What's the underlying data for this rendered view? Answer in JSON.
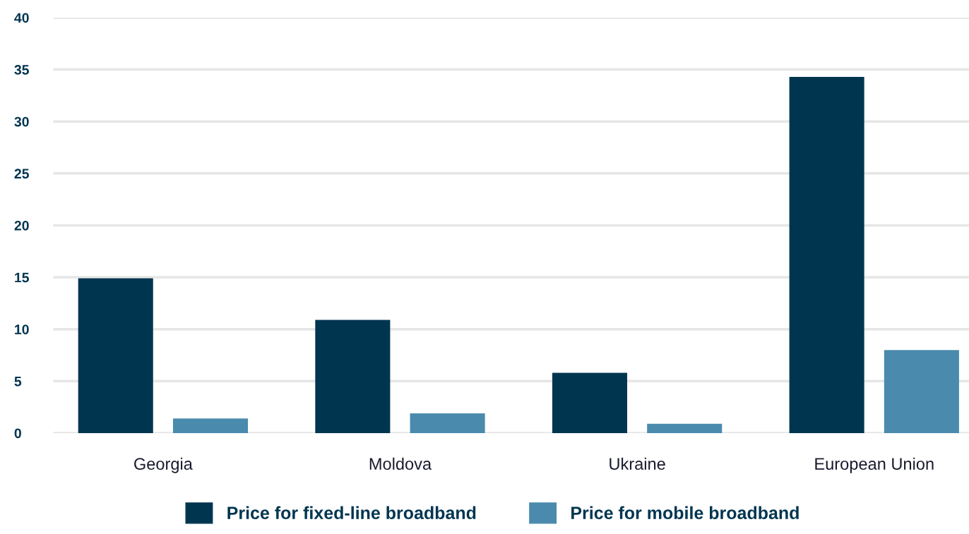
{
  "chart_data": {
    "type": "bar",
    "categories": [
      "Georgia",
      "Moldova",
      "Ukraine",
      "European Union"
    ],
    "series": [
      {
        "name": "Price for fixed-line broadband",
        "color": "#003550",
        "values": [
          14.9,
          10.9,
          5.8,
          34.3
        ]
      },
      {
        "name": "Price for mobile broadband",
        "color": "#4a8aad",
        "values": [
          1.4,
          1.9,
          0.9,
          8.0
        ]
      }
    ],
    "ylim": [
      0,
      40
    ],
    "yticks": [
      0,
      5,
      10,
      15,
      20,
      25,
      30,
      35,
      40
    ],
    "grid": "y",
    "legend": "bottom"
  }
}
